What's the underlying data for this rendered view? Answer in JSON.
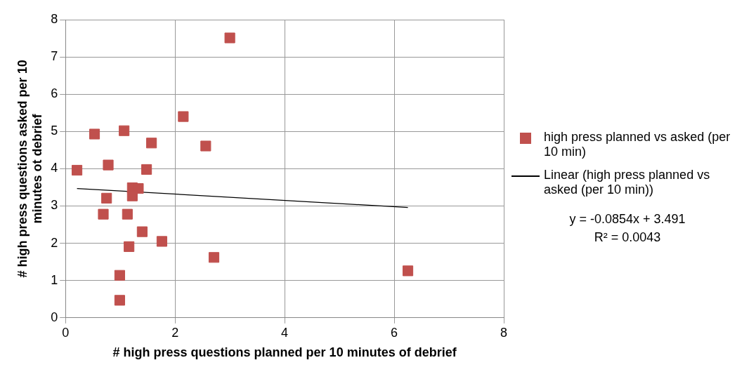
{
  "chart_data": {
    "type": "scatter",
    "xlabel": "# high press questions planned per 10 minutes of debrief",
    "ylabel": "# high press questions asked per 10 minutes ot debrief",
    "xlim": [
      0,
      8
    ],
    "xticks": [
      0,
      2,
      4,
      6,
      8
    ],
    "ylim": [
      0,
      8
    ],
    "yticks": [
      0,
      1,
      2,
      3,
      4,
      5,
      6,
      7,
      8
    ],
    "grid": true,
    "legend": "right",
    "marker": "square",
    "series": [
      {
        "name": "high press planned vs asked (per 10 min)",
        "color": "#c0504d",
        "x": [
          0.21,
          0.53,
          0.78,
          0.75,
          0.69,
          1.07,
          0.99,
          0.99,
          1.16,
          1.13,
          1.22,
          1.33,
          1.22,
          1.48,
          1.57,
          1.4,
          1.76,
          2.15,
          2.56,
          3.0,
          2.71,
          6.25
        ],
        "values": [
          3.96,
          4.93,
          4.1,
          3.21,
          2.78,
          5.02,
          0.47,
          1.14,
          1.91,
          2.78,
          3.49,
          3.47,
          3.27,
          3.98,
          4.69,
          2.31,
          2.05,
          5.4,
          4.61,
          7.51,
          1.62,
          1.26
        ]
      },
      {
        "name": "Linear (high press planned vs asked (per 10 min))",
        "type": "line",
        "color": "#000000",
        "marker": "none",
        "x": [
          0.21,
          6.25
        ],
        "values": [
          3.47,
          2.96
        ]
      }
    ],
    "annotations": [
      "y = -0.0854x + 3.491",
      "R² = 0.0043"
    ]
  }
}
